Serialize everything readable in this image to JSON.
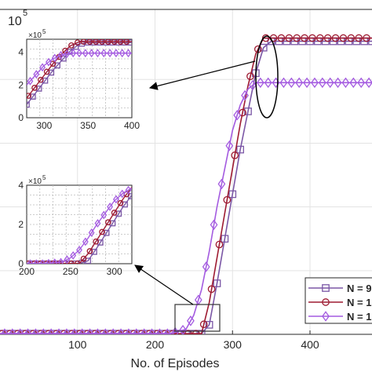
{
  "chart_data": {
    "type": "line",
    "xlabel": "No. of Episodes",
    "ylabel": "",
    "x_ticks": [
      100,
      200,
      300,
      400
    ],
    "y_multiplier_label": "10",
    "y_multiplier_exp": "5",
    "xlim": [
      0,
      480
    ],
    "ylim": [
      0,
      510000
    ],
    "grid": true,
    "legend_position": "bottom-right",
    "colors": {
      "purple": "#7b57a6",
      "red": "#9e1b32",
      "violet": "#a45be0",
      "zoom_box": "#333333"
    },
    "series": [
      {
        "name": "N = 9",
        "marker": "square",
        "color": "#7b57a6",
        "x": [
          0,
          50,
          100,
          150,
          200,
          220,
          240,
          260,
          270,
          280,
          290,
          300,
          310,
          320,
          330,
          340,
          350,
          400,
          450,
          480
        ],
        "y": [
          1000,
          1000,
          1000,
          1000,
          1000,
          1000,
          1000,
          1000,
          15000,
          80000,
          150000,
          220000,
          290000,
          350000,
          410000,
          450000,
          460000,
          460000,
          460000,
          460000
        ]
      },
      {
        "name": "N = 1…",
        "marker": "circle",
        "color": "#9e1b32",
        "x": [
          0,
          50,
          100,
          150,
          200,
          220,
          240,
          260,
          270,
          280,
          290,
          300,
          310,
          320,
          330,
          340,
          350,
          400,
          450,
          480
        ],
        "y": [
          1000,
          1000,
          1000,
          1000,
          1000,
          1000,
          1000,
          1000,
          50000,
          120000,
          190000,
          260000,
          330000,
          390000,
          440000,
          465000,
          465000,
          465000,
          465000,
          465000
        ]
      },
      {
        "name": "N = 1…",
        "marker": "diamond",
        "color": "#a45be0",
        "x": [
          0,
          50,
          100,
          150,
          200,
          220,
          240,
          250,
          260,
          270,
          280,
          290,
          300,
          310,
          320,
          330,
          340,
          350,
          400,
          450,
          480
        ],
        "y": [
          1000,
          1000,
          1000,
          1000,
          1000,
          1000,
          8000,
          30000,
          70000,
          130000,
          200000,
          260000,
          320000,
          360000,
          385000,
          395000,
          395000,
          395000,
          395000,
          395000,
          395000
        ]
      }
    ],
    "insets": [
      {
        "xlim": [
          280,
          400
        ],
        "ylim": [
          0,
          480000
        ],
        "x_ticks": [
          300,
          350,
          400
        ],
        "y_ticks": [
          0,
          2,
          4
        ],
        "y_multiplier_label": "×10",
        "y_multiplier_exp": "5"
      },
      {
        "xlim": [
          200,
          320
        ],
        "ylim": [
          0,
          400000
        ],
        "x_ticks": [
          200,
          250,
          300
        ],
        "y_ticks": [
          0,
          2,
          4
        ],
        "y_multiplier_label": "×10",
        "y_multiplier_exp": "5"
      }
    ]
  }
}
